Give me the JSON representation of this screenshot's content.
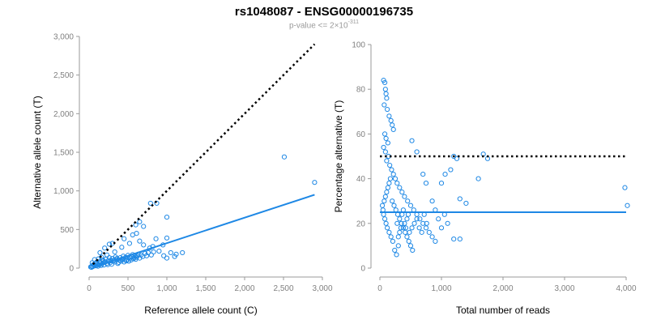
{
  "title": "rs1048087 - ENSG00000196735",
  "subtitle": {
    "prefix": "p-value <= 2",
    "times": "×",
    "base": "10",
    "exponent": "-311"
  },
  "colors": {
    "series": "#1e88e5",
    "reference": "#000000",
    "axis": "#9a9a9a"
  },
  "chart_data": [
    {
      "type": "scatter",
      "xlabel": "Reference allele count (C)",
      "ylabel": "Alternative allele count (T)",
      "xlim": [
        0,
        3000
      ],
      "ylim": [
        0,
        3000
      ],
      "xticks": [
        0,
        500,
        1000,
        1500,
        2000,
        2500,
        3000
      ],
      "xtick_labels": [
        "0",
        "500",
        "1,000",
        "1,500",
        "2,000",
        "2,500",
        "3,000"
      ],
      "yticks": [
        0,
        500,
        1000,
        1500,
        2000,
        2500,
        3000
      ],
      "ytick_labels": [
        "0",
        "500",
        "1,000",
        "1,500",
        "2,000",
        "2,500",
        "3,000"
      ],
      "grid": false,
      "points": [
        [
          2510,
          1440
        ],
        [
          2900,
          1110
        ],
        [
          790,
          840
        ],
        [
          870,
          840
        ],
        [
          1000,
          660
        ],
        [
          650,
          600
        ],
        [
          700,
          540
        ],
        [
          600,
          560
        ],
        [
          560,
          430
        ],
        [
          610,
          450
        ],
        [
          860,
          380
        ],
        [
          950,
          300
        ],
        [
          1000,
          390
        ],
        [
          780,
          260
        ],
        [
          820,
          280
        ],
        [
          900,
          220
        ],
        [
          1050,
          200
        ],
        [
          1120,
          180
        ],
        [
          1200,
          200
        ],
        [
          1100,
          150
        ],
        [
          1000,
          130
        ],
        [
          960,
          160
        ],
        [
          700,
          300
        ],
        [
          650,
          350
        ],
        [
          520,
          320
        ],
        [
          450,
          380
        ],
        [
          420,
          270
        ],
        [
          330,
          210
        ],
        [
          300,
          320
        ],
        [
          260,
          310
        ],
        [
          200,
          260
        ],
        [
          230,
          170
        ],
        [
          180,
          90
        ],
        [
          160,
          140
        ],
        [
          140,
          200
        ],
        [
          120,
          120
        ],
        [
          100,
          80
        ],
        [
          80,
          60
        ],
        [
          60,
          40
        ],
        [
          50,
          20
        ],
        [
          40,
          70
        ],
        [
          70,
          110
        ],
        [
          90,
          30
        ],
        [
          110,
          50
        ],
        [
          130,
          40
        ],
        [
          150,
          70
        ],
        [
          170,
          60
        ],
        [
          190,
          40
        ],
        [
          210,
          80
        ],
        [
          230,
          60
        ],
        [
          250,
          100
        ],
        [
          270,
          70
        ],
        [
          290,
          50
        ],
        [
          310,
          90
        ],
        [
          330,
          80
        ],
        [
          350,
          110
        ],
        [
          370,
          60
        ],
        [
          390,
          100
        ],
        [
          410,
          90
        ],
        [
          430,
          120
        ],
        [
          450,
          80
        ],
        [
          470,
          140
        ],
        [
          490,
          110
        ],
        [
          510,
          90
        ],
        [
          530,
          130
        ],
        [
          550,
          150
        ],
        [
          570,
          120
        ],
        [
          590,
          160
        ],
        [
          610,
          140
        ],
        [
          630,
          180
        ],
        [
          650,
          130
        ],
        [
          670,
          170
        ],
        [
          690,
          150
        ],
        [
          720,
          190
        ],
        [
          740,
          160
        ],
        [
          760,
          200
        ],
        [
          800,
          170
        ],
        [
          830,
          210
        ],
        [
          30,
          10
        ],
        [
          20,
          15
        ],
        [
          35,
          25
        ],
        [
          55,
          45
        ],
        [
          75,
          35
        ],
        [
          95,
          65
        ],
        [
          115,
          25
        ],
        [
          135,
          85
        ],
        [
          155,
          35
        ],
        [
          175,
          105
        ],
        [
          195,
          75
        ],
        [
          215,
          115
        ],
        [
          240,
          45
        ],
        [
          260,
          135
        ],
        [
          280,
          95
        ],
        [
          300,
          125
        ],
        [
          320,
          105
        ],
        [
          340,
          145
        ],
        [
          360,
          125
        ],
        [
          380,
          75
        ],
        [
          400,
          135
        ],
        [
          420,
          115
        ],
        [
          440,
          155
        ],
        [
          460,
          105
        ],
        [
          480,
          95
        ],
        [
          500,
          165
        ],
        [
          520,
          145
        ],
        [
          540,
          105
        ],
        [
          560,
          175
        ],
        [
          580,
          135
        ],
        [
          600,
          115
        ],
        [
          620,
          155
        ]
      ],
      "fit_line": [
        [
          50,
          10
        ],
        [
          2900,
          950
        ]
      ],
      "reference_line": [
        [
          50,
          50
        ],
        [
          2900,
          2900
        ]
      ]
    },
    {
      "type": "scatter",
      "xlabel": "Total number of reads",
      "ylabel": "Percentage alternative (T)",
      "xlim": [
        0,
        4000
      ],
      "ylim": [
        0,
        100
      ],
      "xticks": [
        0,
        1000,
        2000,
        3000,
        4000
      ],
      "xtick_labels": [
        "0",
        "1,000",
        "2,000",
        "3,000",
        "4,000"
      ],
      "yticks": [
        0,
        20,
        40,
        60,
        80,
        100
      ],
      "ytick_labels": [
        "0",
        "20",
        "40",
        "60",
        "80",
        "100"
      ],
      "grid": false,
      "points": [
        [
          60,
          84
        ],
        [
          80,
          83
        ],
        [
          90,
          80
        ],
        [
          100,
          78
        ],
        [
          110,
          76
        ],
        [
          70,
          73
        ],
        [
          120,
          71
        ],
        [
          150,
          68
        ],
        [
          180,
          66
        ],
        [
          200,
          64
        ],
        [
          220,
          62
        ],
        [
          80,
          60
        ],
        [
          100,
          58
        ],
        [
          130,
          56
        ],
        [
          60,
          54
        ],
        [
          90,
          52
        ],
        [
          140,
          50
        ],
        [
          110,
          48
        ],
        [
          160,
          46
        ],
        [
          190,
          44
        ],
        [
          220,
          42
        ],
        [
          250,
          40
        ],
        [
          280,
          38
        ],
        [
          320,
          36
        ],
        [
          360,
          34
        ],
        [
          400,
          32
        ],
        [
          450,
          30
        ],
        [
          500,
          28
        ],
        [
          550,
          26
        ],
        [
          600,
          24
        ],
        [
          650,
          22
        ],
        [
          700,
          20
        ],
        [
          750,
          18
        ],
        [
          800,
          16
        ],
        [
          850,
          14
        ],
        [
          900,
          12
        ],
        [
          200,
          30
        ],
        [
          230,
          28
        ],
        [
          260,
          26
        ],
        [
          290,
          24
        ],
        [
          320,
          22
        ],
        [
          350,
          20
        ],
        [
          380,
          18
        ],
        [
          410,
          16
        ],
        [
          440,
          14
        ],
        [
          470,
          12
        ],
        [
          500,
          10
        ],
        [
          530,
          8
        ],
        [
          300,
          10
        ],
        [
          270,
          6
        ],
        [
          240,
          8
        ],
        [
          210,
          12
        ],
        [
          180,
          14
        ],
        [
          150,
          16
        ],
        [
          120,
          18
        ],
        [
          100,
          20
        ],
        [
          80,
          22
        ],
        [
          60,
          24
        ],
        [
          50,
          26
        ],
        [
          40,
          28
        ],
        [
          70,
          30
        ],
        [
          90,
          32
        ],
        [
          110,
          34
        ],
        [
          130,
          36
        ],
        [
          150,
          38
        ],
        [
          170,
          40
        ],
        [
          400,
          20
        ],
        [
          420,
          18
        ],
        [
          440,
          22
        ],
        [
          460,
          24
        ],
        [
          480,
          16
        ],
        [
          520,
          18
        ],
        [
          560,
          20
        ],
        [
          600,
          22
        ],
        [
          640,
          18
        ],
        [
          680,
          16
        ],
        [
          720,
          24
        ],
        [
          760,
          20
        ],
        [
          380,
          26
        ],
        [
          360,
          24
        ],
        [
          340,
          18
        ],
        [
          320,
          16
        ],
        [
          300,
          14
        ],
        [
          280,
          20
        ],
        [
          1000,
          38
        ],
        [
          1060,
          42
        ],
        [
          1150,
          44
        ],
        [
          1200,
          50
        ],
        [
          1250,
          49
        ],
        [
          1300,
          31
        ],
        [
          1400,
          29
        ],
        [
          1600,
          40
        ],
        [
          1680,
          51
        ],
        [
          1750,
          49
        ],
        [
          1200,
          13
        ],
        [
          1300,
          13
        ],
        [
          1100,
          20
        ],
        [
          1050,
          24
        ],
        [
          3980,
          36
        ],
        [
          4020,
          28
        ],
        [
          520,
          57
        ],
        [
          600,
          52
        ],
        [
          700,
          42
        ],
        [
          750,
          38
        ],
        [
          850,
          30
        ],
        [
          900,
          26
        ],
        [
          950,
          22
        ],
        [
          1000,
          18
        ]
      ],
      "fit_line": [
        [
          0,
          25
        ],
        [
          4000,
          25
        ]
      ],
      "reference_line": [
        [
          0,
          50
        ],
        [
          4000,
          50
        ]
      ]
    }
  ]
}
